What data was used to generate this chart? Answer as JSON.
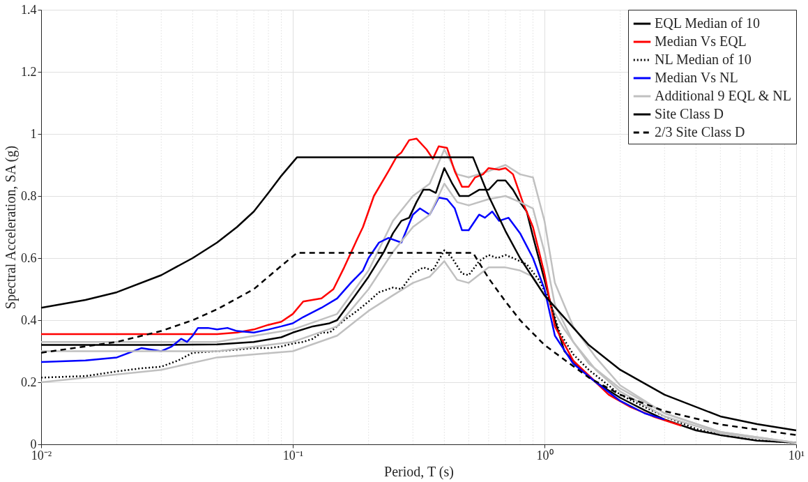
{
  "chart_data": {
    "type": "line",
    "xlabel": "Period, T (s)",
    "ylabel": "Spectral Acceleration, SA (g)",
    "log": "x",
    "xlim": [
      0.01,
      10
    ],
    "xticks": [
      {
        "value": 0.01,
        "label": "10⁻²"
      },
      {
        "value": 0.1,
        "label": "10⁻¹"
      },
      {
        "value": 1,
        "label": "10⁰"
      },
      {
        "value": 10,
        "label": "10¹"
      }
    ],
    "ylim": [
      0,
      1.4
    ],
    "yticks": [
      0,
      0.2,
      0.4,
      0.6,
      0.8,
      1,
      1.2,
      1.4
    ],
    "grid": true,
    "legend": "top right",
    "marker": "none",
    "series": [
      {
        "color": "#c0c0c0",
        "line_style": "solid",
        "x": [
          0.01,
          0.05,
          0.1,
          0.15,
          0.2,
          0.25,
          0.3,
          0.35,
          0.4,
          0.45,
          0.5,
          0.6,
          0.7,
          0.8,
          0.9,
          1.0,
          1.1,
          1.3,
          1.6,
          2,
          3,
          5,
          10
        ],
        "values": [
          0.33,
          0.33,
          0.37,
          0.42,
          0.56,
          0.72,
          0.8,
          0.84,
          0.95,
          0.87,
          0.86,
          0.88,
          0.9,
          0.87,
          0.86,
          0.72,
          0.52,
          0.38,
          0.28,
          0.19,
          0.1,
          0.04,
          0.005
        ]
      },
      {
        "color": "#c0c0c0",
        "line_style": "solid",
        "x": [
          0.01,
          0.03,
          0.05,
          0.1,
          0.15,
          0.2,
          0.25,
          0.3,
          0.35,
          0.4,
          0.45,
          0.5,
          0.6,
          0.7,
          0.8,
          0.9,
          1.0,
          1.2,
          1.5,
          2,
          3,
          5,
          10
        ],
        "values": [
          0.2,
          0.24,
          0.28,
          0.3,
          0.35,
          0.43,
          0.48,
          0.52,
          0.54,
          0.59,
          0.53,
          0.52,
          0.57,
          0.57,
          0.56,
          0.54,
          0.48,
          0.37,
          0.26,
          0.18,
          0.1,
          0.04,
          0.005
        ]
      },
      {
        "name": "EQL Median of 10",
        "color": "#000000",
        "line_style": "solid",
        "x": [
          0.01,
          0.03,
          0.05,
          0.07,
          0.09,
          0.1,
          0.12,
          0.14,
          0.15,
          0.17,
          0.2,
          0.23,
          0.25,
          0.27,
          0.29,
          0.31,
          0.33,
          0.35,
          0.37,
          0.4,
          0.43,
          0.46,
          0.5,
          0.55,
          0.6,
          0.65,
          0.7,
          0.75,
          0.8,
          0.85,
          0.9,
          1.0,
          1.1,
          1.2,
          1.4,
          1.6,
          2,
          2.5,
          3,
          4,
          5,
          7,
          10
        ],
        "values": [
          0.32,
          0.32,
          0.322,
          0.33,
          0.345,
          0.36,
          0.38,
          0.39,
          0.4,
          0.46,
          0.54,
          0.62,
          0.68,
          0.72,
          0.73,
          0.78,
          0.82,
          0.82,
          0.81,
          0.89,
          0.84,
          0.8,
          0.8,
          0.82,
          0.82,
          0.85,
          0.85,
          0.82,
          0.78,
          0.75,
          0.67,
          0.53,
          0.4,
          0.3,
          0.24,
          0.2,
          0.15,
          0.11,
          0.08,
          0.045,
          0.03,
          0.012,
          0.005
        ]
      },
      {
        "name": "Median Vs EQL",
        "color": "#ff0000",
        "line_style": "solid",
        "x": [
          0.01,
          0.05,
          0.06,
          0.07,
          0.08,
          0.09,
          0.1,
          0.11,
          0.13,
          0.145,
          0.16,
          0.18,
          0.19,
          0.21,
          0.24,
          0.26,
          0.27,
          0.29,
          0.31,
          0.34,
          0.36,
          0.38,
          0.41,
          0.44,
          0.47,
          0.5,
          0.53,
          0.57,
          0.6,
          0.66,
          0.7,
          0.75,
          0.82,
          0.9,
          1.0,
          1.1,
          1.3,
          1.6,
          1.8,
          2.2,
          2.7,
          3.5
        ],
        "values": [
          0.355,
          0.355,
          0.36,
          0.37,
          0.385,
          0.395,
          0.42,
          0.46,
          0.47,
          0.5,
          0.57,
          0.66,
          0.7,
          0.8,
          0.88,
          0.93,
          0.94,
          0.98,
          0.985,
          0.95,
          0.92,
          0.96,
          0.955,
          0.88,
          0.83,
          0.83,
          0.86,
          0.87,
          0.89,
          0.885,
          0.89,
          0.87,
          0.78,
          0.7,
          0.55,
          0.38,
          0.27,
          0.2,
          0.16,
          0.12,
          0.09,
          0.06
        ]
      },
      {
        "name": "NL Median of 10",
        "color": "#000000",
        "line_style": "dotted",
        "x": [
          0.01,
          0.015,
          0.02,
          0.025,
          0.03,
          0.035,
          0.04,
          0.05,
          0.06,
          0.07,
          0.08,
          0.09,
          0.1,
          0.11,
          0.12,
          0.13,
          0.14,
          0.16,
          0.18,
          0.2,
          0.22,
          0.25,
          0.27,
          0.3,
          0.33,
          0.36,
          0.4,
          0.43,
          0.47,
          0.5,
          0.55,
          0.6,
          0.65,
          0.7,
          0.75,
          0.85,
          0.95,
          1.05,
          1.15,
          1.3,
          1.5,
          2,
          2.5,
          3,
          4,
          5,
          7,
          10
        ],
        "values": [
          0.215,
          0.22,
          0.235,
          0.245,
          0.25,
          0.27,
          0.295,
          0.3,
          0.305,
          0.31,
          0.31,
          0.315,
          0.325,
          0.33,
          0.34,
          0.36,
          0.36,
          0.4,
          0.43,
          0.46,
          0.49,
          0.505,
          0.5,
          0.55,
          0.57,
          0.56,
          0.625,
          0.6,
          0.55,
          0.545,
          0.59,
          0.61,
          0.6,
          0.61,
          0.6,
          0.58,
          0.53,
          0.46,
          0.36,
          0.29,
          0.24,
          0.16,
          0.12,
          0.09,
          0.05,
          0.03,
          0.013,
          0.005
        ]
      },
      {
        "name": "Median Vs NL",
        "color": "#0000ff",
        "line_style": "solid",
        "x": [
          0.01,
          0.015,
          0.02,
          0.025,
          0.03,
          0.033,
          0.036,
          0.038,
          0.04,
          0.042,
          0.046,
          0.05,
          0.055,
          0.06,
          0.07,
          0.08,
          0.09,
          0.1,
          0.11,
          0.13,
          0.15,
          0.17,
          0.19,
          0.2,
          0.22,
          0.24,
          0.27,
          0.3,
          0.32,
          0.35,
          0.38,
          0.41,
          0.44,
          0.47,
          0.5,
          0.55,
          0.58,
          0.62,
          0.66,
          0.72,
          0.8,
          0.9,
          1.0,
          1.1,
          1.3,
          1.6,
          2,
          2.5,
          3
        ],
        "values": [
          0.265,
          0.27,
          0.28,
          0.31,
          0.3,
          0.315,
          0.34,
          0.33,
          0.35,
          0.375,
          0.375,
          0.37,
          0.375,
          0.365,
          0.36,
          0.37,
          0.38,
          0.39,
          0.41,
          0.44,
          0.47,
          0.52,
          0.56,
          0.6,
          0.65,
          0.665,
          0.65,
          0.74,
          0.76,
          0.74,
          0.795,
          0.79,
          0.76,
          0.69,
          0.69,
          0.74,
          0.73,
          0.75,
          0.72,
          0.73,
          0.68,
          0.6,
          0.5,
          0.35,
          0.26,
          0.2,
          0.14,
          0.1,
          0.08
        ]
      },
      {
        "name": "Additional 9 EQL & NL",
        "color": "#c0c0c0",
        "line_style": "solid",
        "x": [
          0.01,
          0.05,
          0.1,
          0.15,
          0.2,
          0.25,
          0.3,
          0.35,
          0.4,
          0.45,
          0.5,
          0.6,
          0.7,
          0.8,
          0.9,
          1.0,
          1.1,
          1.3,
          1.6,
          2,
          3,
          5,
          10
        ],
        "values": [
          0.3,
          0.3,
          0.33,
          0.38,
          0.5,
          0.62,
          0.7,
          0.74,
          0.84,
          0.78,
          0.77,
          0.79,
          0.8,
          0.78,
          0.76,
          0.62,
          0.45,
          0.33,
          0.24,
          0.17,
          0.09,
          0.035,
          0.005
        ]
      },
      {
        "name": "Site Class D",
        "color": "#000000",
        "line_style": "solid",
        "x": [
          0.01,
          0.015,
          0.02,
          0.03,
          0.04,
          0.05,
          0.06,
          0.07,
          0.08,
          0.09,
          0.104,
          0.52,
          0.6,
          0.7,
          0.8,
          1,
          1.5,
          2,
          3,
          5,
          7,
          10
        ],
        "values": [
          0.44,
          0.465,
          0.49,
          0.545,
          0.6,
          0.65,
          0.7,
          0.75,
          0.81,
          0.865,
          0.925,
          0.925,
          0.8,
          0.687,
          0.6,
          0.48,
          0.32,
          0.24,
          0.16,
          0.09,
          0.065,
          0.045
        ]
      },
      {
        "name": "2/3 Site Class D",
        "color": "#000000",
        "line_style": "dashed",
        "x": [
          0.01,
          0.02,
          0.03,
          0.04,
          0.05,
          0.06,
          0.07,
          0.08,
          0.09,
          0.104,
          0.52,
          0.6,
          0.7,
          0.8,
          1,
          1.5,
          2,
          3,
          5,
          10
        ],
        "values": [
          0.295,
          0.33,
          0.365,
          0.4,
          0.435,
          0.47,
          0.5,
          0.54,
          0.575,
          0.617,
          0.617,
          0.535,
          0.46,
          0.4,
          0.32,
          0.215,
          0.16,
          0.107,
          0.064,
          0.03
        ]
      }
    ]
  }
}
